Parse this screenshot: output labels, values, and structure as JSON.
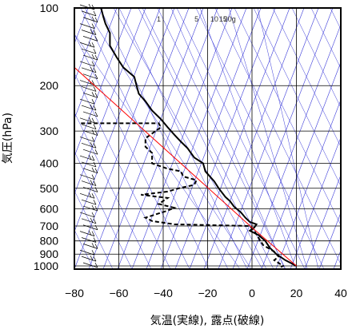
{
  "chart_data": {
    "type": "line",
    "xlabel": "気温(実線), 露点(破線)",
    "ylabel": "気圧(hPa)",
    "x_ticks": [
      -80,
      -60,
      -40,
      -20,
      0,
      20,
      40
    ],
    "x_tick_labels": [
      "−80",
      "−60",
      "−40",
      "−20",
      "0",
      "20",
      "40"
    ],
    "y_ticks": [
      100,
      200,
      300,
      400,
      500,
      600,
      700,
      800,
      900,
      1000
    ],
    "y_tick_labels": [
      "100",
      "200",
      "300",
      "400",
      "500",
      "600",
      "700",
      "800",
      "900",
      "1000"
    ],
    "xlim": [
      -80,
      40
    ],
    "ylim": [
      1050,
      100
    ],
    "y_scale": "log",
    "mixing_ratio_labels": [
      {
        "text": "1",
        "x": -42
      },
      {
        "text": "5",
        "x": -25
      },
      {
        "text": "10",
        "x": -17
      },
      {
        "text": "15",
        "x": -13
      },
      {
        "text": "20g",
        "x": -10
      }
    ],
    "temperature": [
      {
        "p": 100,
        "t": -68
      },
      {
        "p": 108,
        "t": -67
      },
      {
        "p": 115,
        "t": -66
      },
      {
        "p": 125,
        "t": -64
      },
      {
        "p": 140,
        "t": -64
      },
      {
        "p": 155,
        "t": -61
      },
      {
        "p": 170,
        "t": -58
      },
      {
        "p": 185,
        "t": -53
      },
      {
        "p": 200,
        "t": -52
      },
      {
        "p": 215,
        "t": -51
      },
      {
        "p": 230,
        "t": -48
      },
      {
        "p": 250,
        "t": -45
      },
      {
        "p": 270,
        "t": -41
      },
      {
        "p": 290,
        "t": -38
      },
      {
        "p": 310,
        "t": -35
      },
      {
        "p": 330,
        "t": -32
      },
      {
        "p": 350,
        "t": -29
      },
      {
        "p": 380,
        "t": -26
      },
      {
        "p": 400,
        "t": -22
      },
      {
        "p": 430,
        "t": -21
      },
      {
        "p": 470,
        "t": -17
      },
      {
        "p": 500,
        "t": -15
      },
      {
        "p": 540,
        "t": -12
      },
      {
        "p": 560,
        "t": -10
      },
      {
        "p": 590,
        "t": -8
      },
      {
        "p": 620,
        "t": -5
      },
      {
        "p": 650,
        "t": -3
      },
      {
        "p": 675,
        "t": -1
      },
      {
        "p": 690,
        "t": 2
      },
      {
        "p": 710,
        "t": 1
      },
      {
        "p": 730,
        "t": -1
      },
      {
        "p": 760,
        "t": 3
      },
      {
        "p": 800,
        "t": 6
      },
      {
        "p": 850,
        "t": 8
      },
      {
        "p": 900,
        "t": 11
      },
      {
        "p": 950,
        "t": 15
      },
      {
        "p": 1000,
        "t": 20
      }
    ],
    "dewpoint": [
      {
        "p": 280,
        "td": -77
      },
      {
        "p": 280,
        "td": -42
      },
      {
        "p": 290,
        "td": -41
      },
      {
        "p": 320,
        "td": -48
      },
      {
        "p": 345,
        "td": -48
      },
      {
        "p": 365,
        "td": -45
      },
      {
        "p": 400,
        "td": -45
      },
      {
        "p": 420,
        "td": -38
      },
      {
        "p": 430,
        "td": -32
      },
      {
        "p": 450,
        "td": -31
      },
      {
        "p": 465,
        "td": -25
      },
      {
        "p": 485,
        "td": -26
      },
      {
        "p": 500,
        "td": -33
      },
      {
        "p": 515,
        "td": -38
      },
      {
        "p": 530,
        "td": -50
      },
      {
        "p": 545,
        "td": -38
      },
      {
        "p": 575,
        "td": -42
      },
      {
        "p": 595,
        "td": -35
      },
      {
        "p": 610,
        "td": -38
      },
      {
        "p": 650,
        "td": -48
      },
      {
        "p": 670,
        "td": -45
      },
      {
        "p": 690,
        "td": -35
      },
      {
        "p": 700,
        "td": -1
      },
      {
        "p": 730,
        "td": 1
      },
      {
        "p": 780,
        "td": 3
      },
      {
        "p": 830,
        "td": 5
      },
      {
        "p": 880,
        "td": 10
      },
      {
        "p": 920,
        "td": 12
      },
      {
        "p": 950,
        "td": 10
      },
      {
        "p": 1000,
        "td": 14
      },
      {
        "p": 1010,
        "td": 13
      }
    ],
    "parcel_path": [
      {
        "p": 1000,
        "t": 20
      },
      {
        "p": 710,
        "t": 0
      },
      {
        "p": 170,
        "t": -80
      }
    ],
    "colors": {
      "temperature": "#000000",
      "dewpoint": "#000000",
      "parcel": "#ff0000",
      "background_lines": "#3b3bd9",
      "grid": "#000000"
    }
  }
}
